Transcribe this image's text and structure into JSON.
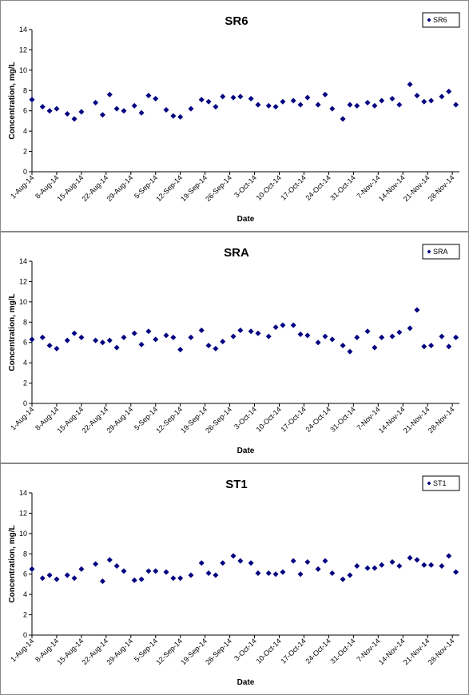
{
  "chart_data": [
    {
      "type": "scatter",
      "title": "SR6",
      "x_label": "Date",
      "y_label": "Concentration, mg/L",
      "legend": "top-right",
      "x": [
        "2014-08-01",
        "2014-08-04",
        "2014-08-06",
        "2014-08-08",
        "2014-08-11",
        "2014-08-13",
        "2014-08-15",
        "2014-08-19",
        "2014-08-21",
        "2014-08-23",
        "2014-08-25",
        "2014-08-27",
        "2014-08-30",
        "2014-09-01",
        "2014-09-03",
        "2014-09-05",
        "2014-09-08",
        "2014-09-10",
        "2014-09-12",
        "2014-09-15",
        "2014-09-18",
        "2014-09-20",
        "2014-09-22",
        "2014-09-24",
        "2014-09-27",
        "2014-09-29",
        "2014-10-02",
        "2014-10-04",
        "2014-10-07",
        "2014-10-09",
        "2014-10-11",
        "2014-10-14",
        "2014-10-16",
        "2014-10-18",
        "2014-10-21",
        "2014-10-23",
        "2014-10-25",
        "2014-10-28",
        "2014-10-30",
        "2014-11-01",
        "2014-11-04",
        "2014-11-06",
        "2014-11-08",
        "2014-11-11",
        "2014-11-13",
        "2014-11-16",
        "2014-11-18",
        "2014-11-20",
        "2014-11-22",
        "2014-11-25",
        "2014-11-27",
        "2014-11-29"
      ],
      "series": [
        {
          "name": "SR6",
          "color": "#000080",
          "values": [
            7.1,
            6.4,
            6.0,
            6.2,
            5.7,
            5.2,
            5.9,
            6.8,
            5.6,
            7.6,
            6.2,
            6.0,
            6.5,
            5.8,
            7.5,
            7.2,
            6.1,
            5.5,
            5.4,
            6.2,
            7.1,
            6.9,
            6.4,
            7.4,
            7.3,
            7.4,
            7.2,
            6.6,
            6.5,
            6.4,
            6.9,
            7.0,
            6.6,
            7.3,
            6.6,
            7.6,
            6.2,
            5.2,
            6.6,
            6.5,
            6.8,
            6.5,
            7.0,
            7.2,
            6.6,
            8.6,
            7.5,
            6.9,
            7.0,
            7.4,
            7.9,
            6.6
          ]
        }
      ],
      "xlim": [
        "2014-08-01",
        "2014-11-30"
      ],
      "xticks": [
        {
          "value": "2014-08-01",
          "label": "1-Aug-14"
        },
        {
          "value": "2014-08-08",
          "label": "8-Aug-14"
        },
        {
          "value": "2014-08-15",
          "label": "15-Aug-14"
        },
        {
          "value": "2014-08-22",
          "label": "22-Aug-14"
        },
        {
          "value": "2014-08-29",
          "label": "29-Aug-14"
        },
        {
          "value": "2014-09-05",
          "label": "5-Sep-14"
        },
        {
          "value": "2014-09-12",
          "label": "12-Sep-14"
        },
        {
          "value": "2014-09-19",
          "label": "19-Sep-14"
        },
        {
          "value": "2014-09-26",
          "label": "26-Sep-14"
        },
        {
          "value": "2014-10-03",
          "label": "3-Oct-14"
        },
        {
          "value": "2014-10-10",
          "label": "10-Oct-14"
        },
        {
          "value": "2014-10-17",
          "label": "17-Oct-14"
        },
        {
          "value": "2014-10-24",
          "label": "24-Oct-14"
        },
        {
          "value": "2014-10-31",
          "label": "31-Oct-14"
        },
        {
          "value": "2014-11-07",
          "label": "7-Nov-14"
        },
        {
          "value": "2014-11-14",
          "label": "14-Nov-14"
        },
        {
          "value": "2014-11-21",
          "label": "21-Nov-14"
        },
        {
          "value": "2014-11-28",
          "label": "28-Nov-14"
        }
      ],
      "ylim": [
        0,
        14
      ],
      "yticks": [
        0,
        2,
        4,
        6,
        8,
        10,
        12,
        14
      ]
    },
    {
      "type": "scatter",
      "title": "SRA",
      "x_label": "Date",
      "y_label": "Concentration, mg/L",
      "legend": "top-right",
      "x": [
        "2014-08-01",
        "2014-08-04",
        "2014-08-06",
        "2014-08-08",
        "2014-08-11",
        "2014-08-13",
        "2014-08-15",
        "2014-08-19",
        "2014-08-21",
        "2014-08-23",
        "2014-08-25",
        "2014-08-27",
        "2014-08-30",
        "2014-09-01",
        "2014-09-03",
        "2014-09-05",
        "2014-09-08",
        "2014-09-10",
        "2014-09-12",
        "2014-09-15",
        "2014-09-18",
        "2014-09-20",
        "2014-09-22",
        "2014-09-24",
        "2014-09-27",
        "2014-09-29",
        "2014-10-02",
        "2014-10-04",
        "2014-10-07",
        "2014-10-09",
        "2014-10-11",
        "2014-10-14",
        "2014-10-16",
        "2014-10-18",
        "2014-10-21",
        "2014-10-23",
        "2014-10-25",
        "2014-10-28",
        "2014-10-30",
        "2014-11-01",
        "2014-11-04",
        "2014-11-06",
        "2014-11-08",
        "2014-11-11",
        "2014-11-13",
        "2014-11-16",
        "2014-11-18",
        "2014-11-20",
        "2014-11-22",
        "2014-11-25",
        "2014-11-27",
        "2014-11-29"
      ],
      "series": [
        {
          "name": "SRA",
          "color": "#000080",
          "values": [
            6.3,
            6.5,
            5.7,
            5.4,
            6.2,
            6.9,
            6.5,
            6.2,
            6.0,
            6.2,
            5.5,
            6.5,
            6.9,
            5.8,
            7.1,
            6.3,
            6.7,
            6.5,
            5.3,
            6.5,
            7.2,
            5.7,
            5.4,
            6.1,
            6.6,
            7.2,
            7.1,
            6.9,
            6.6,
            7.5,
            7.7,
            7.7,
            6.8,
            6.7,
            6.0,
            6.6,
            6.3,
            5.7,
            5.1,
            6.5,
            7.1,
            5.5,
            6.5,
            6.6,
            7.0,
            7.4,
            9.2,
            5.6,
            5.7,
            6.6,
            5.6,
            6.5
          ]
        }
      ],
      "xlim": [
        "2014-08-01",
        "2014-11-30"
      ],
      "xticks": [
        {
          "value": "2014-08-01",
          "label": "1-Aug-14"
        },
        {
          "value": "2014-08-08",
          "label": "8-Aug-14"
        },
        {
          "value": "2014-08-15",
          "label": "15-Aug-14"
        },
        {
          "value": "2014-08-22",
          "label": "22-Aug-14"
        },
        {
          "value": "2014-08-29",
          "label": "29-Aug-14"
        },
        {
          "value": "2014-09-05",
          "label": "5-Sep-14"
        },
        {
          "value": "2014-09-12",
          "label": "12-Sep-14"
        },
        {
          "value": "2014-09-19",
          "label": "19-Sep-14"
        },
        {
          "value": "2014-09-26",
          "label": "26-Sep-14"
        },
        {
          "value": "2014-10-03",
          "label": "3-Oct-14"
        },
        {
          "value": "2014-10-10",
          "label": "10-Oct-14"
        },
        {
          "value": "2014-10-17",
          "label": "17-Oct-14"
        },
        {
          "value": "2014-10-24",
          "label": "24-Oct-14"
        },
        {
          "value": "2014-10-31",
          "label": "31-Oct-14"
        },
        {
          "value": "2014-11-07",
          "label": "7-Nov-14"
        },
        {
          "value": "2014-11-14",
          "label": "14-Nov-14"
        },
        {
          "value": "2014-11-21",
          "label": "21-Nov-14"
        },
        {
          "value": "2014-11-28",
          "label": "28-Nov-14"
        }
      ],
      "ylim": [
        0,
        14
      ],
      "yticks": [
        0,
        2,
        4,
        6,
        8,
        10,
        12,
        14
      ]
    },
    {
      "type": "scatter",
      "title": "ST1",
      "x_label": "Date",
      "y_label": "Concentration, mg/L",
      "legend": "top-right",
      "x": [
        "2014-08-01",
        "2014-08-04",
        "2014-08-06",
        "2014-08-08",
        "2014-08-11",
        "2014-08-13",
        "2014-08-15",
        "2014-08-19",
        "2014-08-21",
        "2014-08-23",
        "2014-08-25",
        "2014-08-27",
        "2014-08-30",
        "2014-09-01",
        "2014-09-03",
        "2014-09-05",
        "2014-09-08",
        "2014-09-10",
        "2014-09-12",
        "2014-09-15",
        "2014-09-18",
        "2014-09-20",
        "2014-09-22",
        "2014-09-24",
        "2014-09-27",
        "2014-09-29",
        "2014-10-02",
        "2014-10-04",
        "2014-10-07",
        "2014-10-09",
        "2014-10-11",
        "2014-10-14",
        "2014-10-16",
        "2014-10-18",
        "2014-10-21",
        "2014-10-23",
        "2014-10-25",
        "2014-10-28",
        "2014-10-30",
        "2014-11-01",
        "2014-11-04",
        "2014-11-06",
        "2014-11-08",
        "2014-11-11",
        "2014-11-13",
        "2014-11-16",
        "2014-11-18",
        "2014-11-20",
        "2014-11-22",
        "2014-11-25",
        "2014-11-27",
        "2014-11-29"
      ],
      "series": [
        {
          "name": "ST1",
          "color": "#000080",
          "values": [
            6.5,
            5.6,
            5.9,
            5.5,
            5.9,
            5.6,
            6.5,
            7.0,
            5.3,
            7.4,
            6.8,
            6.3,
            5.4,
            5.5,
            6.3,
            6.3,
            6.2,
            5.6,
            5.6,
            5.9,
            7.1,
            6.1,
            5.9,
            7.1,
            7.8,
            7.3,
            7.1,
            6.1,
            6.1,
            6.0,
            6.2,
            7.3,
            6.0,
            7.2,
            6.5,
            7.3,
            6.1,
            5.5,
            5.9,
            6.8,
            6.6,
            6.6,
            6.9,
            7.2,
            6.8,
            7.6,
            7.4,
            6.9,
            6.9,
            6.8,
            7.8,
            6.2
          ]
        }
      ],
      "xlim": [
        "2014-08-01",
        "2014-11-30"
      ],
      "xticks": [
        {
          "value": "2014-08-01",
          "label": "1-Aug-14"
        },
        {
          "value": "2014-08-08",
          "label": "8-Aug-14"
        },
        {
          "value": "2014-08-15",
          "label": "15-Aug-14"
        },
        {
          "value": "2014-08-22",
          "label": "22-Aug-14"
        },
        {
          "value": "2014-08-29",
          "label": "29-Aug-14"
        },
        {
          "value": "2014-09-05",
          "label": "5-Sep-14"
        },
        {
          "value": "2014-09-12",
          "label": "12-Sep-14"
        },
        {
          "value": "2014-09-19",
          "label": "19-Sep-14"
        },
        {
          "value": "2014-09-26",
          "label": "26-Sep-14"
        },
        {
          "value": "2014-10-03",
          "label": "3-Oct-14"
        },
        {
          "value": "2014-10-10",
          "label": "10-Oct-14"
        },
        {
          "value": "2014-10-17",
          "label": "17-Oct-14"
        },
        {
          "value": "2014-10-24",
          "label": "24-Oct-14"
        },
        {
          "value": "2014-10-31",
          "label": "31-Oct-14"
        },
        {
          "value": "2014-11-07",
          "label": "7-Nov-14"
        },
        {
          "value": "2014-11-14",
          "label": "14-Nov-14"
        },
        {
          "value": "2014-11-21",
          "label": "21-Nov-14"
        },
        {
          "value": "2014-11-28",
          "label": "28-Nov-14"
        }
      ],
      "ylim": [
        0,
        14
      ],
      "yticks": [
        0,
        2,
        4,
        6,
        8,
        10,
        12,
        14
      ]
    }
  ]
}
